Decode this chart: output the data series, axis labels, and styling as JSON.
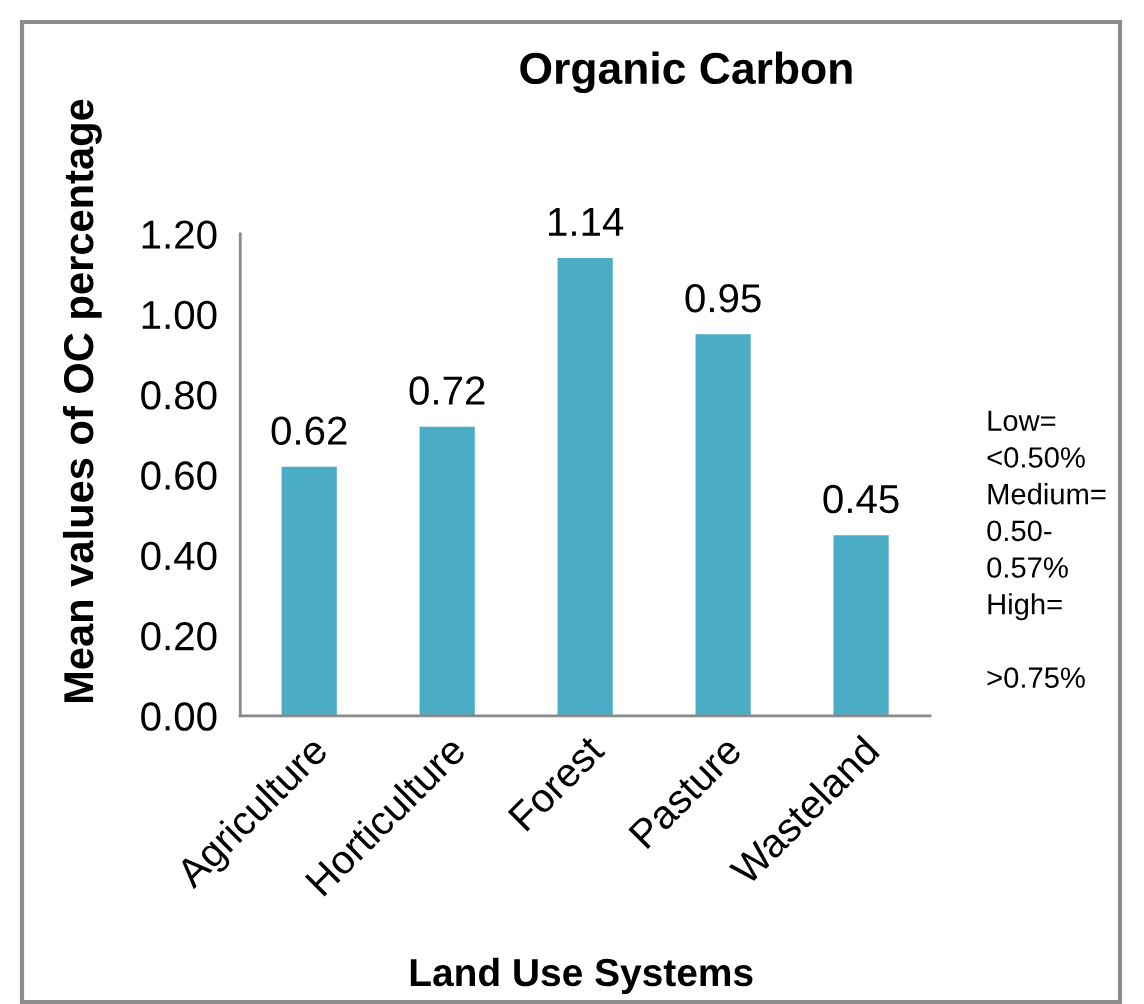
{
  "chart_data": {
    "type": "bar",
    "title": "Organic Carbon",
    "xlabel": "Land Use Systems",
    "ylabel": "Mean values of OC percentage",
    "categories": [
      "Agriculture",
      "Horticulture",
      "Forest",
      "Pasture",
      "Wasteland"
    ],
    "values": [
      0.62,
      0.72,
      1.14,
      0.95,
      0.45
    ],
    "color": "#4bacc6",
    "ylim": [
      0,
      1.2
    ],
    "yticks": [
      {
        "value": 0,
        "label": "0.00"
      },
      {
        "value": 0.2,
        "label": "0.20"
      },
      {
        "value": 0.4,
        "label": "0.40"
      },
      {
        "value": 0.6,
        "label": "0.60"
      },
      {
        "value": 0.8,
        "label": "0.80"
      },
      {
        "value": 1.0,
        "label": "1.00"
      },
      {
        "value": 1.2,
        "label": "1.20"
      }
    ],
    "data_labels": true,
    "grid": false,
    "legend": false,
    "annotations": [
      "Low=\n<0.50%\nMedium=\n0.50-\n0.57%\nHigh=\n\n>0.75%"
    ]
  }
}
